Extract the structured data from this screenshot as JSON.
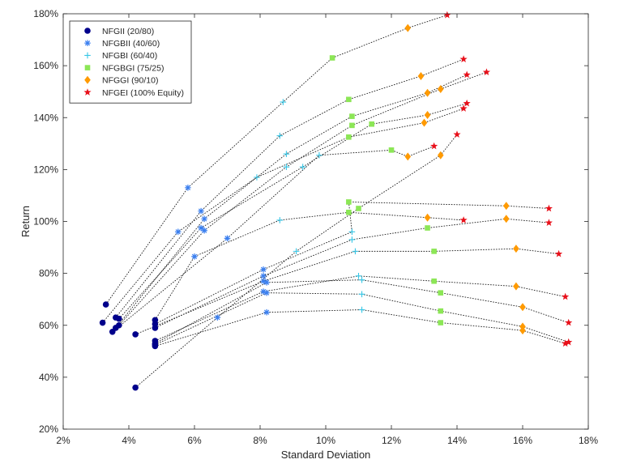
{
  "chart_data": {
    "type": "scatter",
    "xlabel": "Standard Deviation",
    "ylabel": "Return",
    "xlim": [
      2,
      18
    ],
    "ylim": [
      20,
      180
    ],
    "x_ticks": [
      2,
      4,
      6,
      8,
      10,
      12,
      14,
      16,
      18
    ],
    "y_ticks": [
      20,
      40,
      60,
      80,
      100,
      120,
      140,
      160,
      180
    ],
    "x_tick_labels": [
      "2%",
      "4%",
      "6%",
      "8%",
      "10%",
      "12%",
      "14%",
      "16%",
      "18%"
    ],
    "y_tick_labels": [
      "20%",
      "40%",
      "60%",
      "80%",
      "100%",
      "120%",
      "140%",
      "160%",
      "180%"
    ],
    "grid": false,
    "legend_position": "top-left",
    "series": [
      {
        "name": "NFGII (20/80)",
        "marker": "circle",
        "color": "#00008B"
      },
      {
        "name": "NFGBII (40/60)",
        "marker": "asterisk",
        "color": "#3A7FF0"
      },
      {
        "name": "NFGBI (60/40)",
        "marker": "plus",
        "color": "#36C6E6"
      },
      {
        "name": "NFGBGI (75/25)",
        "marker": "square",
        "color": "#8CE656"
      },
      {
        "name": "NFGGI (90/10)",
        "marker": "diamond",
        "color": "#FF9A00"
      },
      {
        "name": "NFGEI (100% Equity)",
        "marker": "star",
        "color": "#E8101A"
      }
    ],
    "portfolios": [
      [
        [
          3.3,
          68
        ],
        [
          5.8,
          113
        ],
        [
          8.7,
          146
        ],
        [
          10.2,
          163
        ],
        [
          12.5,
          174.5
        ],
        [
          13.7,
          179.5
        ]
      ],
      [
        [
          3.6,
          63
        ],
        [
          6.2,
          104
        ],
        [
          8.6,
          133
        ],
        [
          10.7,
          147
        ],
        [
          12.9,
          156
        ],
        [
          14.2,
          162.5
        ]
      ],
      [
        [
          3.6,
          59
        ],
        [
          6.3,
          101
        ],
        [
          8.8,
          126
        ],
        [
          10.8,
          140.5
        ],
        [
          13.1,
          149.5
        ],
        [
          14.3,
          156.5
        ]
      ],
      [
        [
          3.7,
          60
        ],
        [
          6.3,
          96.5
        ],
        [
          8.8,
          121
        ],
        [
          10.8,
          137
        ],
        [
          13.5,
          151
        ],
        [
          14.9,
          157.5
        ]
      ],
      [
        [
          3.7,
          62.5
        ],
        [
          6.2,
          97.5
        ],
        [
          9.3,
          121
        ],
        [
          11.4,
          137.5
        ],
        [
          13.1,
          141
        ],
        [
          14.3,
          145.5
        ]
      ],
      [
        [
          3.2,
          61
        ],
        [
          5.5,
          96
        ],
        [
          7.9,
          117
        ],
        [
          10.7,
          132.5
        ],
        [
          13,
          138
        ],
        [
          14.2,
          143.5
        ]
      ],
      [
        [
          3.5,
          57.5
        ],
        [
          7,
          93.5
        ],
        [
          9.8,
          125.5
        ],
        [
          12,
          127.5
        ],
        [
          12.5,
          125
        ],
        [
          13.3,
          129
        ]
      ],
      [
        [
          4.2,
          36
        ],
        [
          6.7,
          63
        ],
        [
          9.1,
          88.5
        ],
        [
          11,
          105
        ],
        [
          13.5,
          125.5
        ],
        [
          14,
          133.5
        ]
      ],
      [
        [
          4.8,
          62
        ],
        [
          6,
          86.5
        ],
        [
          8.6,
          100.5
        ],
        [
          10.7,
          103.5
        ],
        [
          13.1,
          101.5
        ],
        [
          14.2,
          100.5
        ]
      ],
      [
        [
          4.8,
          60.5
        ],
        [
          8.1,
          81.5
        ],
        [
          10.8,
          96
        ],
        [
          10.7,
          107.5
        ],
        [
          15.5,
          106
        ],
        [
          16.8,
          105
        ]
      ],
      [
        [
          4.8,
          59
        ],
        [
          8.1,
          79
        ],
        [
          10.8,
          93
        ],
        [
          13.1,
          97.5
        ],
        [
          15.5,
          101
        ],
        [
          16.8,
          99.5
        ]
      ],
      [
        [
          4.2,
          56.5
        ],
        [
          8.1,
          77
        ],
        [
          10.9,
          88.5
        ],
        [
          13.3,
          88.5
        ],
        [
          15.8,
          89.5
        ],
        [
          17.1,
          87.5
        ]
      ],
      [
        [
          4.8,
          54
        ],
        [
          8.1,
          73
        ],
        [
          11,
          79
        ],
        [
          13.3,
          77
        ],
        [
          15.8,
          75
        ],
        [
          17.3,
          71
        ]
      ],
      [
        [
          4.8,
          53
        ],
        [
          8.2,
          76.5
        ],
        [
          11.1,
          77.5
        ],
        [
          13.5,
          72.5
        ],
        [
          16,
          67
        ],
        [
          17.4,
          61
        ]
      ],
      [
        [
          4.8,
          52.5
        ],
        [
          8.2,
          72.5
        ],
        [
          11.1,
          72
        ],
        [
          13.5,
          65.5
        ],
        [
          16,
          59.5
        ],
        [
          17.4,
          53.5
        ]
      ],
      [
        [
          4.8,
          52
        ],
        [
          8.2,
          65
        ],
        [
          11.1,
          66
        ],
        [
          13.5,
          61
        ],
        [
          16,
          58
        ],
        [
          17.3,
          53
        ]
      ]
    ]
  }
}
